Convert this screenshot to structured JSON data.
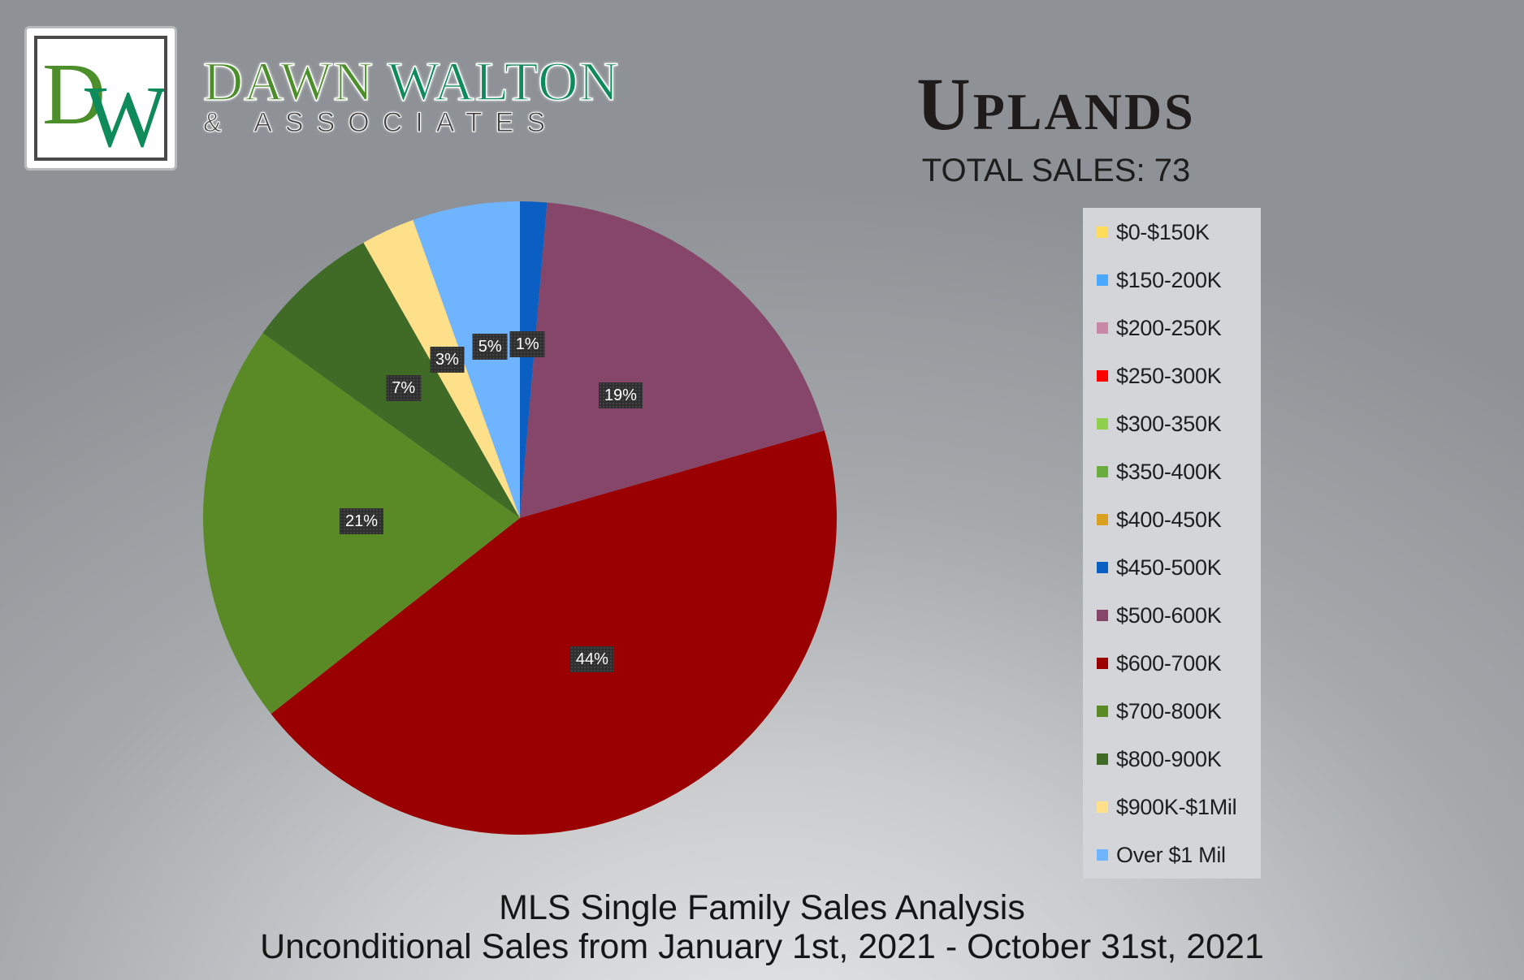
{
  "brand": {
    "monogram": "DW",
    "name_first": "DAWN",
    "name_second": "WALTON",
    "tagline": "& ASSOCIATES",
    "colors": {
      "green": "#4c8f2a",
      "teal": "#0f8a5a"
    }
  },
  "header": {
    "title": "Uplands",
    "total_sales": "TOTAL SALES: 73"
  },
  "footer": {
    "line1": "MLS Single Family Sales Analysis",
    "line2": "Unconditional Sales from January 1st, 2021 - October 31st, 2021"
  },
  "chart_data": {
    "type": "pie",
    "title": "Uplands",
    "legend_position": "right",
    "categories": [
      "$0-$150K",
      "$150-200K",
      "$200-250K",
      "$250-300K",
      "$300-350K",
      "$350-400K",
      "$400-450K",
      "$450-500K",
      "$500-600K",
      "$600-700K",
      "$700-800K",
      "$800-900K",
      "$900K-$1Mil",
      "Over $1 Mil"
    ],
    "colors": [
      "#ffdc5a",
      "#4aa8ff",
      "#c987a8",
      "#ff0000",
      "#8fd14f",
      "#6aad3e",
      "#dba01f",
      "#0b5fc2",
      "#86466a",
      "#9a0000",
      "#5a8a26",
      "#3f6b27",
      "#ffe08a",
      "#6fb4ff"
    ],
    "values": [
      0,
      0,
      0,
      0,
      0,
      0,
      0,
      1,
      14,
      32,
      15,
      5,
      2,
      4
    ],
    "labels": [
      "",
      "",
      "",
      "",
      "",
      "",
      "",
      "1%",
      "19%",
      "44%",
      "21%",
      "7%",
      "3%",
      "5%"
    ],
    "start_slice_index": 7,
    "direction": "clockwise"
  }
}
